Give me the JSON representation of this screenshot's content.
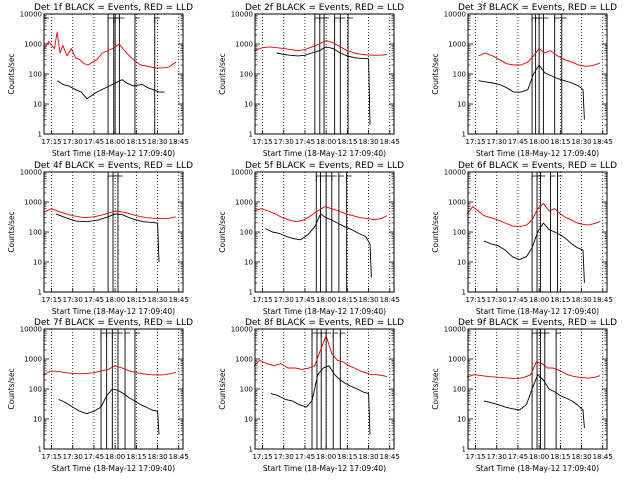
{
  "figure": {
    "title_prefix": "Det",
    "title_suffix": "BLACK = Events, RED = LLD",
    "xlabel": "Start Time (18-May-12 17:09:40)",
    "ylabel": "Counts/sec",
    "x_ticks": [
      "17:15",
      "17:30",
      "17:45",
      "18:00",
      "18:15",
      "18:30",
      "18:45"
    ],
    "y_ticks": [
      "1",
      "10",
      "100",
      "1000",
      "10000"
    ],
    "colors": {
      "events": "#000000",
      "lld": "#e00000",
      "axes": "#000000"
    }
  },
  "chart_data": [
    {
      "type": "line",
      "detector": "1f",
      "scale_y": "log",
      "ylim": [
        1,
        10000
      ],
      "xlim": [
        "17:09:40",
        "18:48:00"
      ],
      "grid": "vertical dotted",
      "markers": [
        "17:09:40",
        "17:55:00",
        "17:59:00",
        "18:00:00",
        "18:03:00",
        "18:14:00",
        "18:28:00"
      ],
      "series": [
        {
          "name": "BLACK = Events",
          "color": "#000000",
          "x": [
            "17:19",
            "17:23",
            "17:27",
            "17:32",
            "17:36",
            "17:40",
            "17:44",
            "17:47",
            "18:05",
            "18:08",
            "18:13",
            "18:19",
            "18:23",
            "18:27",
            "18:31",
            "18:35"
          ],
          "y": [
            60,
            45,
            40,
            30,
            25,
            15,
            20,
            25,
            65,
            50,
            40,
            45,
            35,
            30,
            25,
            25
          ]
        },
        {
          "name": "RED = LLD",
          "color": "#e00000",
          "x": [
            "17:09",
            "17:13",
            "17:17",
            "17:19",
            "17:21",
            "17:23",
            "17:26",
            "17:29",
            "17:32",
            "17:35",
            "17:38",
            "17:41",
            "17:44",
            "17:47",
            "17:51",
            "17:58",
            "18:03",
            "18:08",
            "18:13",
            "18:18",
            "18:23",
            "18:28",
            "18:33",
            "18:38",
            "18:43"
          ],
          "y": [
            600,
            1200,
            700,
            2500,
            500,
            900,
            400,
            700,
            350,
            300,
            220,
            200,
            250,
            300,
            500,
            700,
            1000,
            500,
            300,
            200,
            180,
            160,
            160,
            170,
            250
          ]
        }
      ]
    },
    {
      "type": "line",
      "detector": "2f",
      "scale_y": "log",
      "ylim": [
        1,
        10000
      ],
      "xlim": [
        "17:09:40",
        "18:48:00"
      ],
      "grid": "vertical dotted",
      "markers": [
        "17:52:00",
        "17:55:30",
        "17:58:30",
        "18:06:00",
        "18:10:00",
        "18:15:30"
      ],
      "series": [
        {
          "name": "BLACK = Events",
          "color": "#000000",
          "x": [
            "17:25",
            "17:30",
            "17:35",
            "17:40",
            "17:45",
            "17:50",
            "17:55",
            "18:00",
            "18:05",
            "18:10",
            "18:15",
            "18:20",
            "18:25",
            "18:30",
            "18:31"
          ],
          "y": [
            500,
            450,
            420,
            400,
            420,
            500,
            600,
            800,
            700,
            500,
            400,
            350,
            330,
            320,
            2
          ]
        },
        {
          "name": "RED = LLD",
          "color": "#e00000",
          "x": [
            "17:09",
            "17:15",
            "17:20",
            "17:25",
            "17:30",
            "17:35",
            "17:40",
            "17:45",
            "17:50",
            "17:55",
            "18:00",
            "18:05",
            "18:10",
            "18:15",
            "18:20",
            "18:25",
            "18:30",
            "18:35",
            "18:40",
            "18:43"
          ],
          "y": [
            600,
            750,
            800,
            750,
            700,
            650,
            600,
            650,
            800,
            1000,
            1300,
            1100,
            800,
            600,
            500,
            450,
            430,
            420,
            430,
            450
          ]
        }
      ]
    },
    {
      "type": "line",
      "detector": "3f",
      "scale_y": "log",
      "ylim": [
        1,
        10000
      ],
      "xlim": [
        "17:09:40",
        "18:48:00"
      ],
      "grid": "vertical dotted",
      "markers": [
        "17:55:00",
        "17:57:30",
        "18:00:00",
        "18:03:00",
        "18:11:00",
        "18:16:00"
      ],
      "series": [
        {
          "name": "BLACK = Events",
          "color": "#000000",
          "x": [
            "17:17",
            "17:22",
            "17:27",
            "17:32",
            "17:37",
            "17:42",
            "17:47",
            "17:52",
            "17:56",
            "18:00",
            "18:04",
            "18:08",
            "18:13",
            "18:18",
            "18:23",
            "18:28",
            "18:31",
            "18:32"
          ],
          "y": [
            60,
            55,
            50,
            45,
            35,
            25,
            25,
            30,
            100,
            200,
            110,
            90,
            70,
            60,
            50,
            40,
            30,
            3
          ]
        },
        {
          "name": "RED = LLD",
          "color": "#e00000",
          "x": [
            "17:17",
            "17:22",
            "17:27",
            "17:32",
            "17:37",
            "17:42",
            "17:47",
            "17:52",
            "17:56",
            "18:00",
            "18:04",
            "18:08",
            "18:13",
            "18:18",
            "18:23",
            "18:28",
            "18:33",
            "18:38",
            "18:43"
          ],
          "y": [
            400,
            500,
            400,
            300,
            220,
            200,
            200,
            250,
            400,
            700,
            500,
            600,
            400,
            300,
            250,
            200,
            180,
            190,
            230
          ]
        }
      ]
    },
    {
      "type": "line",
      "detector": "4f",
      "scale_y": "log",
      "ylim": [
        1,
        10000
      ],
      "xlim": [
        "17:09:40",
        "18:48:00"
      ],
      "grid": "vertical dotted",
      "markers": [
        "17:55:00",
        "17:58:30",
        "18:02:00"
      ],
      "series": [
        {
          "name": "BLACK = Events",
          "color": "#000000",
          "x": [
            "17:18",
            "17:25",
            "17:32",
            "17:40",
            "17:48",
            "17:55",
            "18:00",
            "18:05",
            "18:10",
            "18:15",
            "18:20",
            "18:25",
            "18:30",
            "18:31"
          ],
          "y": [
            400,
            300,
            230,
            220,
            250,
            320,
            400,
            380,
            300,
            250,
            220,
            210,
            200,
            10
          ]
        },
        {
          "name": "RED = LLD",
          "color": "#e00000",
          "x": [
            "17:09",
            "17:15",
            "17:22",
            "17:30",
            "17:38",
            "17:45",
            "17:52",
            "18:00",
            "18:07",
            "18:15",
            "18:22",
            "18:30",
            "18:37",
            "18:43"
          ],
          "y": [
            450,
            600,
            450,
            350,
            300,
            320,
            380,
            500,
            450,
            350,
            300,
            280,
            280,
            320
          ]
        }
      ]
    },
    {
      "type": "line",
      "detector": "5f",
      "scale_y": "log",
      "ylim": [
        1,
        10000
      ],
      "xlim": [
        "17:09:40",
        "18:48:00"
      ],
      "grid": "vertical dotted",
      "markers": [
        "17:53:00",
        "17:56:00",
        "18:00:00",
        "18:04:00",
        "18:09:00",
        "18:14:30"
      ],
      "series": [
        {
          "name": "BLACK = Events",
          "color": "#000000",
          "x": [
            "17:17",
            "17:22",
            "17:27",
            "17:32",
            "17:37",
            "17:42",
            "17:47",
            "17:52",
            "17:56",
            "18:00",
            "18:04",
            "18:08",
            "18:13",
            "18:18",
            "18:23",
            "18:28",
            "18:31",
            "18:32"
          ],
          "y": [
            130,
            100,
            90,
            70,
            60,
            55,
            80,
            150,
            400,
            300,
            250,
            200,
            150,
            120,
            90,
            70,
            40,
            3
          ]
        },
        {
          "name": "RED = LLD",
          "color": "#e00000",
          "x": [
            "17:09",
            "17:14",
            "17:19",
            "17:24",
            "17:29",
            "17:34",
            "17:39",
            "17:44",
            "17:49",
            "17:54",
            "17:59",
            "18:04",
            "18:09",
            "18:14",
            "18:19",
            "18:24",
            "18:29",
            "18:34",
            "18:39",
            "18:43"
          ],
          "y": [
            500,
            600,
            500,
            400,
            300,
            250,
            220,
            250,
            350,
            500,
            700,
            600,
            500,
            400,
            350,
            300,
            280,
            260,
            280,
            350
          ]
        }
      ]
    },
    {
      "type": "line",
      "detector": "6f",
      "scale_y": "log",
      "ylim": [
        1,
        10000
      ],
      "xlim": [
        "17:09:40",
        "18:48:00"
      ],
      "grid": "vertical dotted",
      "markers": [
        "17:55:00",
        "17:58:30",
        "18:01:00",
        "18:08:00",
        "18:13:00"
      ],
      "series": [
        {
          "name": "BLACK = Events",
          "color": "#000000",
          "x": [
            "17:21",
            "17:26",
            "17:31",
            "17:36",
            "17:41",
            "17:46",
            "17:51",
            "17:55",
            "17:59",
            "18:03",
            "18:07",
            "18:11",
            "18:15",
            "18:19",
            "18:23",
            "18:27",
            "18:31",
            "18:32"
          ],
          "y": [
            50,
            40,
            35,
            25,
            15,
            12,
            15,
            30,
            100,
            200,
            120,
            100,
            80,
            60,
            40,
            30,
            25,
            2
          ]
        },
        {
          "name": "RED = LLD",
          "color": "#e00000",
          "x": [
            "17:09",
            "17:13",
            "17:17",
            "17:21",
            "17:26",
            "17:31",
            "17:36",
            "17:41",
            "17:46",
            "17:51",
            "17:55",
            "17:59",
            "18:03",
            "18:07",
            "18:11",
            "18:15",
            "18:19",
            "18:23",
            "18:27",
            "18:31",
            "18:35",
            "18:39",
            "18:43"
          ],
          "y": [
            400,
            700,
            500,
            350,
            300,
            250,
            200,
            160,
            150,
            170,
            250,
            600,
            900,
            500,
            600,
            400,
            300,
            250,
            200,
            180,
            170,
            190,
            220
          ]
        }
      ]
    },
    {
      "type": "line",
      "detector": "7f",
      "scale_y": "log",
      "ylim": [
        1,
        10000
      ],
      "xlim": [
        "17:09:40",
        "18:48:00"
      ],
      "grid": "vertical dotted",
      "markers": [
        "17:50:00",
        "17:54:00",
        "17:58:00",
        "18:02:00",
        "18:07:00",
        "18:14:00"
      ],
      "series": [
        {
          "name": "BLACK = Events",
          "color": "#000000",
          "x": [
            "17:20",
            "17:25",
            "17:30",
            "17:35",
            "17:40",
            "17:45",
            "17:50",
            "17:54",
            "17:58",
            "18:02",
            "18:06",
            "18:10",
            "18:14",
            "18:18",
            "18:22",
            "18:26",
            "18:30",
            "18:31"
          ],
          "y": [
            45,
            35,
            25,
            18,
            15,
            18,
            25,
            60,
            100,
            90,
            70,
            50,
            40,
            30,
            25,
            20,
            18,
            3
          ]
        },
        {
          "name": "RED = LLD",
          "color": "#e00000",
          "x": [
            "17:09",
            "17:15",
            "17:20",
            "17:25",
            "17:30",
            "17:35",
            "17:40",
            "17:45",
            "17:50",
            "17:55",
            "18:00",
            "18:05",
            "18:10",
            "18:15",
            "18:20",
            "18:25",
            "18:30",
            "18:35",
            "18:40",
            "18:43"
          ],
          "y": [
            300,
            400,
            380,
            350,
            330,
            320,
            330,
            350,
            400,
            450,
            600,
            500,
            400,
            350,
            320,
            300,
            290,
            300,
            330,
            360
          ]
        }
      ]
    },
    {
      "type": "line",
      "detector": "8f",
      "scale_y": "log",
      "ylim": [
        1,
        10000
      ],
      "xlim": [
        "17:09:40",
        "18:48:00"
      ],
      "grid": "vertical dotted",
      "markers": [
        "17:50:00",
        "17:53:30",
        "17:56:30",
        "18:00:00",
        "18:05:00",
        "18:10:00"
      ],
      "series": [
        {
          "name": "BLACK = Events",
          "color": "#000000",
          "x": [
            "17:21",
            "17:26",
            "17:31",
            "17:36",
            "17:41",
            "17:46",
            "17:50",
            "17:54",
            "17:58",
            "18:02",
            "18:06",
            "18:10",
            "18:14",
            "18:18",
            "18:22",
            "18:26",
            "18:30",
            "18:31"
          ],
          "y": [
            70,
            60,
            45,
            40,
            30,
            25,
            40,
            300,
            500,
            600,
            300,
            200,
            150,
            120,
            100,
            80,
            70,
            3
          ]
        },
        {
          "name": "RED = LLD",
          "color": "#e00000",
          "x": [
            "17:09",
            "17:13",
            "17:18",
            "17:23",
            "17:28",
            "17:33",
            "17:38",
            "17:43",
            "17:48",
            "17:52",
            "17:56",
            "18:00",
            "18:04",
            "18:08",
            "18:12",
            "18:16",
            "18:20",
            "18:24",
            "18:28",
            "18:32",
            "18:36",
            "18:40",
            "18:43"
          ],
          "y": [
            600,
            900,
            700,
            600,
            700,
            500,
            500,
            450,
            500,
            600,
            2000,
            6000,
            1500,
            900,
            800,
            600,
            500,
            400,
            350,
            300,
            300,
            280,
            260
          ]
        }
      ]
    },
    {
      "type": "line",
      "detector": "9f",
      "scale_y": "log",
      "ylim": [
        1,
        10000
      ],
      "xlim": [
        "17:09:40",
        "18:48:00"
      ],
      "grid": "vertical dotted",
      "markers": [
        "17:55:00",
        "17:58:30",
        "18:01:00",
        "18:04:00",
        "18:12:00"
      ],
      "series": [
        {
          "name": "BLACK = Events",
          "color": "#000000",
          "x": [
            "17:21",
            "17:26",
            "17:31",
            "17:36",
            "17:41",
            "17:46",
            "17:51",
            "17:55",
            "17:59",
            "18:03",
            "18:07",
            "18:11",
            "18:15",
            "18:19",
            "18:23",
            "18:27",
            "18:31",
            "18:32"
          ],
          "y": [
            40,
            35,
            30,
            25,
            22,
            20,
            30,
            100,
            300,
            200,
            100,
            80,
            60,
            50,
            40,
            30,
            20,
            5
          ]
        },
        {
          "name": "RED = LLD",
          "color": "#e00000",
          "x": [
            "17:09",
            "17:14",
            "17:19",
            "17:24",
            "17:29",
            "17:34",
            "17:39",
            "17:44",
            "17:49",
            "17:54",
            "17:58",
            "18:02",
            "18:06",
            "18:10",
            "18:15",
            "18:20",
            "18:25",
            "18:30",
            "18:35",
            "18:40",
            "18:43"
          ],
          "y": [
            250,
            300,
            280,
            260,
            250,
            240,
            230,
            220,
            240,
            300,
            800,
            700,
            500,
            500,
            400,
            300,
            260,
            240,
            230,
            250,
            280
          ]
        }
      ]
    }
  ]
}
